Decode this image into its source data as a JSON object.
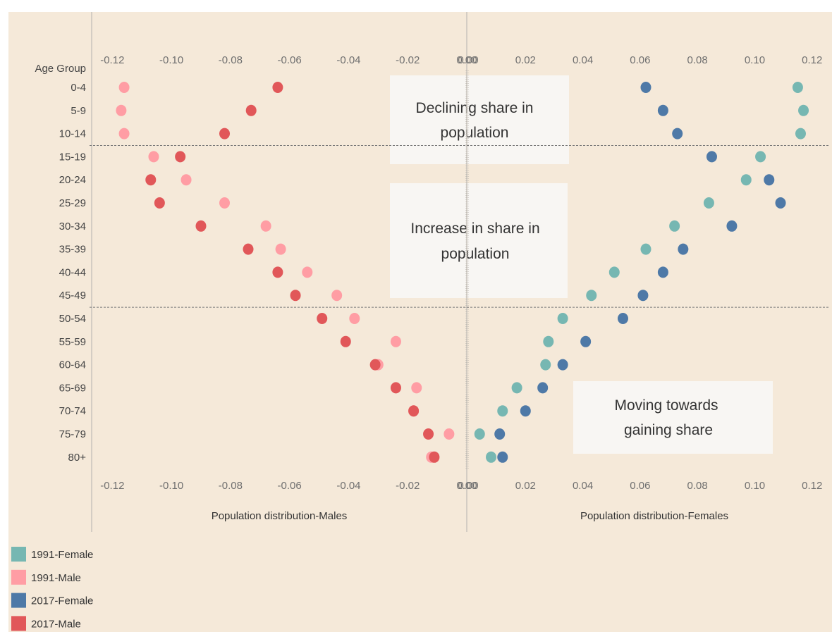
{
  "chart_data": {
    "type": "scatter",
    "category_axis_label": "Age Group",
    "categories": [
      "0-4",
      "5-9",
      "10-14",
      "15-19",
      "20-24",
      "25-29",
      "30-34",
      "35-39",
      "40-44",
      "45-49",
      "50-54",
      "55-59",
      "60-64",
      "65-69",
      "70-74",
      "75-79",
      "80+"
    ],
    "panels": [
      {
        "xlabel": "Population distribution-Males",
        "xlim": [
          -0.127,
          0.0
        ],
        "ticks": [
          -0.12,
          -0.1,
          -0.08,
          -0.06,
          -0.04,
          -0.02,
          0.0
        ],
        "tick_labels": [
          "-0.12",
          "-0.10",
          "-0.08",
          "-0.06",
          "-0.04",
          "-0.02",
          "0.00"
        ]
      },
      {
        "xlabel": "Population distribution-Females",
        "xlim": [
          0.0,
          0.124
        ],
        "ticks": [
          0.0,
          0.02,
          0.04,
          0.06,
          0.08,
          0.1,
          0.12
        ],
        "tick_labels": [
          "0.00",
          "0.02",
          "0.04",
          "0.06",
          "0.08",
          "0.10",
          "0.12"
        ]
      }
    ],
    "series": [
      {
        "name": "1991-Male",
        "panel": 0,
        "color": "#ff9da4",
        "values": [
          -0.116,
          -0.117,
          -0.116,
          -0.106,
          -0.095,
          -0.082,
          -0.068,
          -0.063,
          -0.054,
          -0.044,
          -0.038,
          -0.024,
          -0.03,
          -0.017,
          -0.018,
          -0.006,
          -0.012
        ]
      },
      {
        "name": "2017-Male",
        "panel": 0,
        "color": "#e15759",
        "values": [
          -0.064,
          -0.073,
          -0.082,
          -0.097,
          -0.107,
          -0.104,
          -0.09,
          -0.074,
          -0.064,
          -0.058,
          -0.049,
          -0.041,
          -0.031,
          -0.024,
          -0.018,
          -0.013,
          -0.011
        ]
      },
      {
        "name": "1991-Female",
        "panel": 1,
        "color": "#76b7b2",
        "values": [
          0.115,
          0.117,
          0.116,
          0.102,
          0.097,
          0.084,
          0.072,
          0.062,
          0.051,
          0.043,
          0.033,
          0.028,
          0.027,
          0.017,
          0.012,
          0.004,
          0.008
        ]
      },
      {
        "name": "2017-Female",
        "panel": 1,
        "color": "#4e79a7",
        "values": [
          0.062,
          0.068,
          0.073,
          0.085,
          0.105,
          0.109,
          0.092,
          0.075,
          0.068,
          0.061,
          0.054,
          0.041,
          0.033,
          0.026,
          0.02,
          0.011,
          0.012
        ]
      }
    ],
    "reference_lines_after": [
      "10-14",
      "45-49"
    ],
    "annotations": [
      {
        "label_lines": [
          "Declining share in",
          "population"
        ]
      },
      {
        "label_lines": [
          "Increase in share in",
          "population"
        ]
      },
      {
        "label_lines": [
          "Moving towards",
          "gaining share"
        ]
      }
    ],
    "legend": {
      "placement": "bottom-left",
      "entries": [
        {
          "label": "1991-Female",
          "color": "#76b7b2"
        },
        {
          "label": "1991-Male",
          "color": "#ff9da4"
        },
        {
          "label": "2017-Female",
          "color": "#4e79a7"
        },
        {
          "label": "2017-Male",
          "color": "#e15759"
        }
      ]
    },
    "grid": false
  }
}
